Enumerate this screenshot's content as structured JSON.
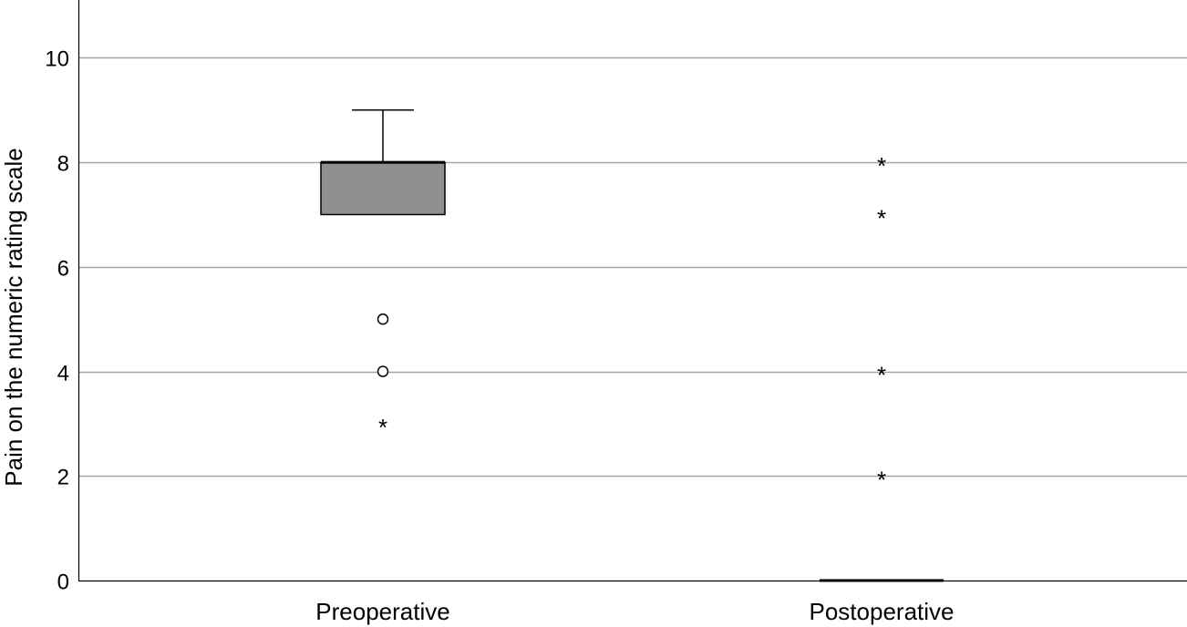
{
  "chart_data": {
    "type": "boxplot",
    "ylabel": "Pain on the numeric rating scale",
    "xlabel": "",
    "ylim": [
      0,
      11
    ],
    "yticks": [
      0,
      2,
      4,
      6,
      8,
      10
    ],
    "grid": "horizontal",
    "colors": {
      "box_fill": "#909090",
      "grid": "#a6a6a6",
      "axis": "#000000"
    },
    "categories": [
      "Preoperative",
      "Postoperative"
    ],
    "boxes": [
      {
        "category": "Preoperative",
        "min": 7,
        "q1": 7,
        "median": 8,
        "q3": 8,
        "max": 9,
        "outliers": [
          5,
          4
        ],
        "extremes": [
          3
        ]
      },
      {
        "category": "Postoperative",
        "min": 0,
        "q1": 0,
        "median": 0,
        "q3": 0,
        "max": 0,
        "outliers": [],
        "extremes": [
          8,
          7,
          4,
          2
        ]
      }
    ]
  }
}
